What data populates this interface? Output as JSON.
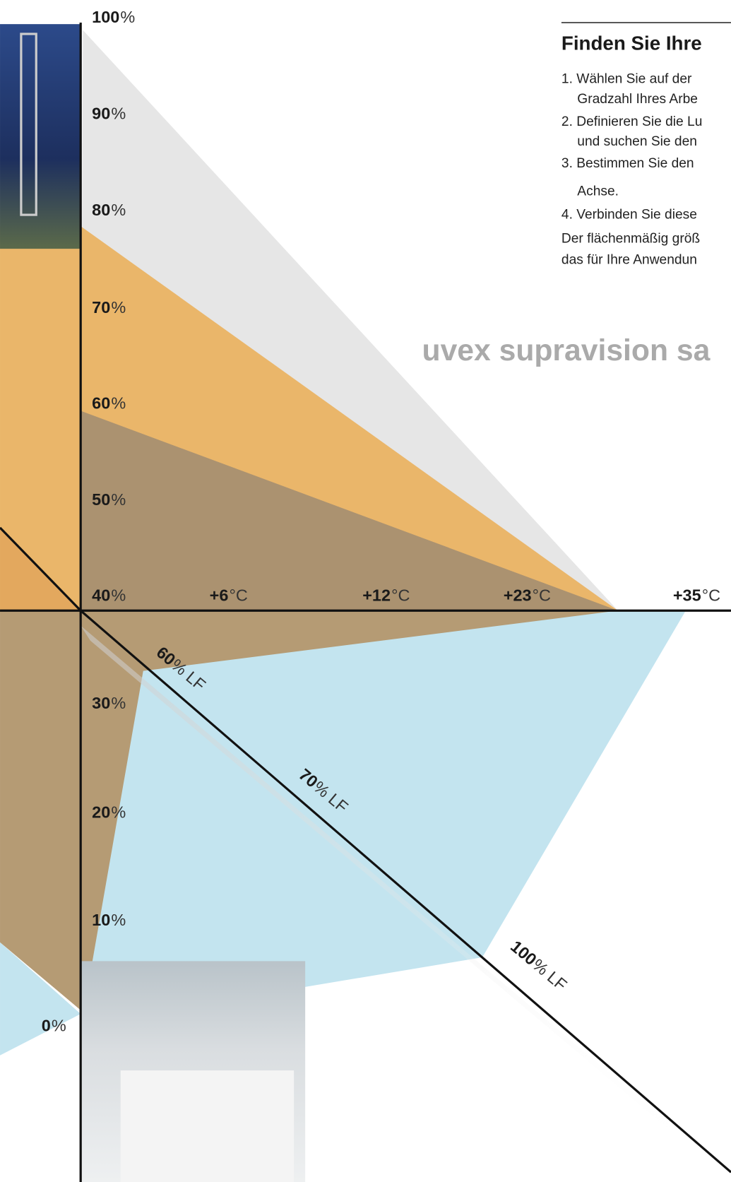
{
  "humidity_labels": [
    {
      "num": "100",
      "unit": "%"
    },
    {
      "num": "90",
      "unit": "%"
    },
    {
      "num": "80",
      "unit": "%"
    },
    {
      "num": "70",
      "unit": "%"
    },
    {
      "num": "60",
      "unit": "%"
    },
    {
      "num": "50",
      "unit": "%"
    },
    {
      "num": "40",
      "unit": "%"
    },
    {
      "num": "30",
      "unit": "%"
    },
    {
      "num": "20",
      "unit": "%"
    },
    {
      "num": "10",
      "unit": "%"
    },
    {
      "num": "0",
      "unit": "%"
    }
  ],
  "temperature_labels": [
    {
      "num": "+6",
      "unit": "°C"
    },
    {
      "num": "+12",
      "unit": "°C"
    },
    {
      "num": "+23",
      "unit": "°C"
    },
    {
      "num": "+35",
      "unit": "°C"
    }
  ],
  "lf_labels": [
    {
      "num": "60",
      "unit": "% LF"
    },
    {
      "num": "70",
      "unit": "% LF"
    },
    {
      "num": "100",
      "unit": "% LF"
    }
  ],
  "panel": {
    "title": "Finden Sie Ihre",
    "steps": [
      "1. Wählen Sie auf der",
      "Gradzahl Ihres Arbe",
      "2. Definieren Sie die Lu",
      "und suchen Sie den",
      "3. Bestimmen Sie den",
      "Achse.",
      "4. Verbinden Sie diese"
    ],
    "note": [
      "Der flächenmäßig größ",
      "das für Ihre Anwendun"
    ]
  },
  "brand": "uvex supravision sa"
}
